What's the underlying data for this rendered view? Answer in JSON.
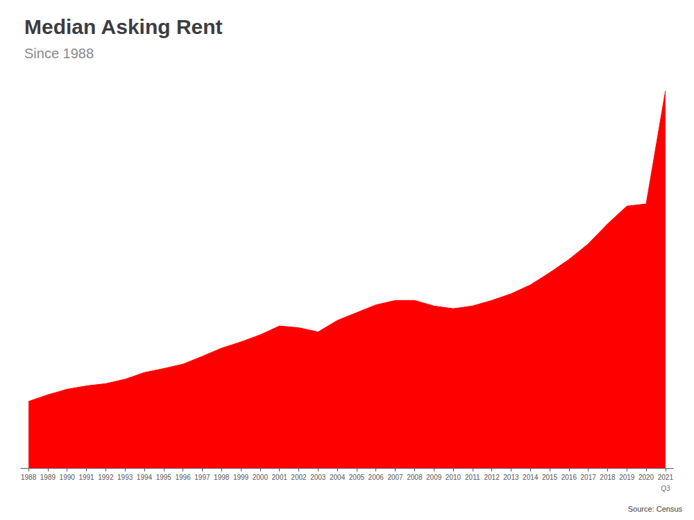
{
  "chart_data": {
    "type": "area",
    "title": "Median Asking Rent",
    "subtitle": "Since 1988",
    "source": "Source: Census",
    "annotation": "Q3",
    "x": [
      1988,
      1989,
      1990,
      1991,
      1992,
      1993,
      1994,
      1995,
      1996,
      1997,
      1998,
      1999,
      2000,
      2001,
      2002,
      2003,
      2004,
      2005,
      2006,
      2007,
      2008,
      2009,
      2010,
      2011,
      2012,
      2013,
      2014,
      2015,
      2016,
      2017,
      2018,
      2019,
      2020,
      2021
    ],
    "values": [
      300,
      330,
      355,
      370,
      380,
      400,
      430,
      448,
      468,
      503,
      540,
      568,
      600,
      640,
      632,
      613,
      665,
      700,
      735,
      755,
      755,
      730,
      718,
      730,
      755,
      785,
      825,
      880,
      940,
      1010,
      1100,
      1180,
      1190,
      1700
    ],
    "color": "#ff0000",
    "xlim": [
      1987.6,
      2021.4
    ],
    "xticks": [
      1988,
      1989,
      1990,
      1991,
      1992,
      1993,
      1994,
      1995,
      1996,
      1997,
      1998,
      1999,
      2000,
      2001,
      2002,
      2003,
      2004,
      2005,
      2006,
      2007,
      2008,
      2009,
      2010,
      2011,
      2012,
      2013,
      2014,
      2015,
      2016,
      2017,
      2018,
      2019,
      2020,
      2021
    ],
    "ylim": [
      0,
      1734
    ],
    "grid": false,
    "tick_labels": "x"
  }
}
